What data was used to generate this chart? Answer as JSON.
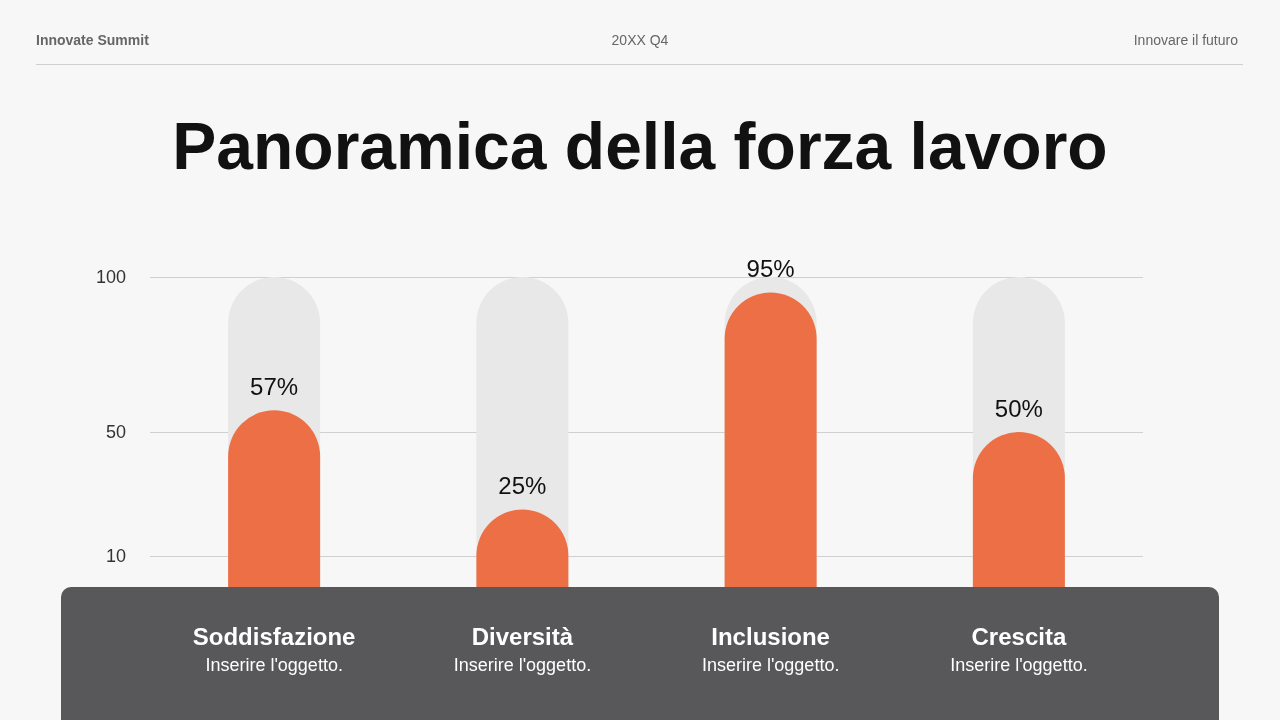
{
  "chart_data": {
    "type": "bar",
    "title": "Panoramica della forza lavoro",
    "categories": [
      "Soddisfazione",
      "Diversità",
      "Inclusione",
      "Crescita"
    ],
    "values": [
      57,
      25,
      95,
      50
    ],
    "value_labels": [
      "57%",
      "25%",
      "95%",
      "50%"
    ],
    "color": "#ec6f45",
    "ylim": [
      0,
      100
    ],
    "yticks": [
      10,
      50,
      100
    ],
    "grid": "y",
    "annotations": [
      "Innovate Summit",
      "20XX Q4",
      "Innovare il futuro",
      "Inserire l'oggetto.",
      "Inserire l'oggetto.",
      "Inserire l'oggetto.",
      "Inserire l'oggetto."
    ]
  }
}
